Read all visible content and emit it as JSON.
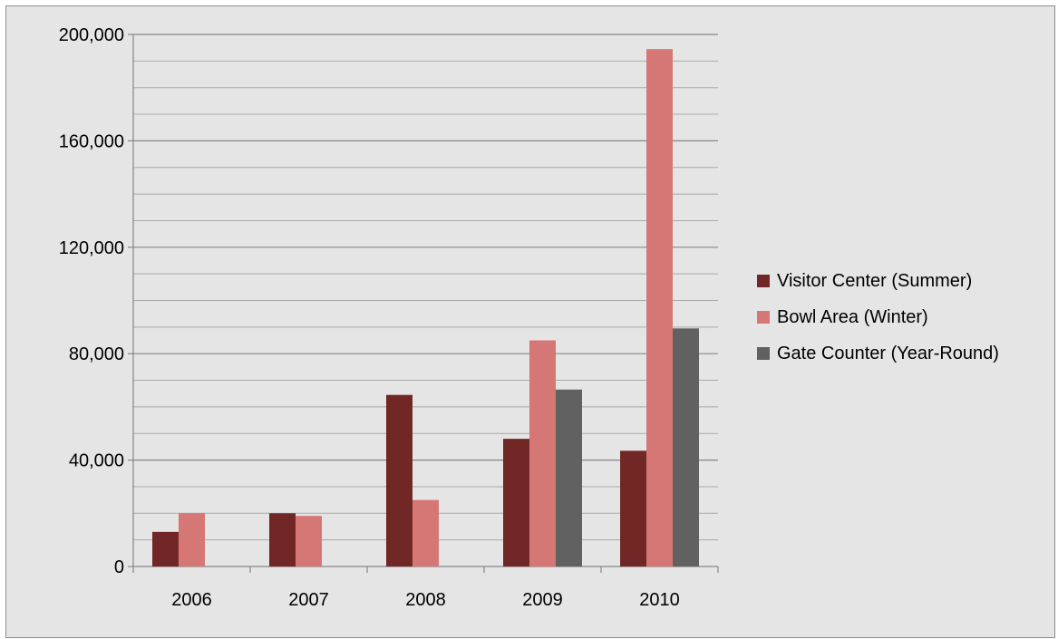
{
  "chart_data": {
    "type": "bar",
    "categories": [
      "2006",
      "2007",
      "2008",
      "2009",
      "2010"
    ],
    "series": [
      {
        "name": "Visitor Center (Summer)",
        "color": "#722727",
        "values": [
          13000,
          20000,
          64500,
          48000,
          43500
        ]
      },
      {
        "name": "Bowl Area (Winter)",
        "color": "#d57775",
        "values": [
          20000,
          19000,
          25000,
          85000,
          194500
        ]
      },
      {
        "name": "Gate Counter (Year-Round)",
        "color": "#616161",
        "values": [
          null,
          null,
          null,
          66500,
          89500
        ]
      }
    ],
    "y_ticks": [
      "0",
      "40,000",
      "80,000",
      "120,000",
      "160,000",
      "200,000"
    ],
    "ylim": [
      0,
      200000
    ],
    "y_major_step": 40000,
    "y_minor_step": 10000,
    "grid": true,
    "legend_position": "right",
    "title": "",
    "xlabel": "",
    "ylabel": ""
  }
}
